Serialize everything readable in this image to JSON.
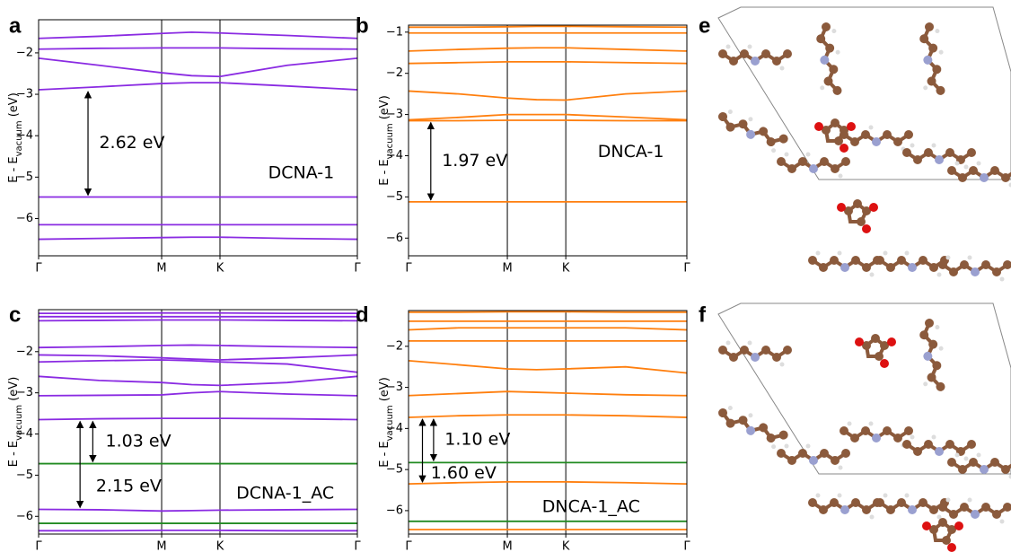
{
  "chart_data": [
    {
      "type": "line",
      "panel_label": "a",
      "label": "DCNA-1",
      "ylabel": [
        "E - E",
        "vacuum",
        " (eV)"
      ],
      "x": [
        0,
        0.19,
        0.386,
        0.48,
        0.569,
        0.78,
        1
      ],
      "xlim": [
        0,
        1
      ],
      "xticks": [
        {
          "value": 0,
          "label": "Γ"
        },
        {
          "value": 0.386,
          "label": "M"
        },
        {
          "value": 0.569,
          "label": "K"
        },
        {
          "value": 1,
          "label": "Γ"
        }
      ],
      "ylim": [
        -6.9,
        -1.2
      ],
      "yticks": [
        {
          "value": -6,
          "label": "−6"
        },
        {
          "value": -5,
          "label": "−5"
        },
        {
          "value": -4,
          "label": "−4"
        },
        {
          "value": -3,
          "label": "−3"
        },
        {
          "value": -2,
          "label": "−2"
        }
      ],
      "xgrid": true,
      "series": [
        {
          "color": "#8a2be2",
          "values": [
            -1.65,
            -1.6,
            -1.53,
            -1.5,
            -1.52,
            -1.58,
            -1.65
          ]
        },
        {
          "color": "#8a2be2",
          "values": [
            -1.91,
            -1.89,
            -1.88,
            -1.88,
            -1.88,
            -1.9,
            -1.91
          ]
        },
        {
          "color": "#8a2be2",
          "values": [
            -2.13,
            -2.3,
            -2.48,
            -2.55,
            -2.57,
            -2.3,
            -2.13
          ]
        },
        {
          "color": "#8a2be2",
          "values": [
            -2.89,
            -2.82,
            -2.74,
            -2.72,
            -2.72,
            -2.8,
            -2.89
          ]
        },
        {
          "color": "#8a2be2",
          "values": [
            -5.48,
            -5.48,
            -5.48,
            -5.48,
            -5.48,
            -5.48,
            -5.48
          ]
        },
        {
          "color": "#8a2be2",
          "values": [
            -6.15,
            -6.15,
            -6.15,
            -6.15,
            -6.15,
            -6.15,
            -6.15
          ]
        },
        {
          "color": "#8a2be2",
          "values": [
            -6.5,
            -6.48,
            -6.46,
            -6.45,
            -6.45,
            -6.48,
            -6.5
          ]
        }
      ],
      "annotations": [
        "2.62 eV"
      ]
    },
    {
      "type": "line",
      "panel_label": "b",
      "label": "DNCA-1",
      "ylabel": [
        "E - E",
        "vacuum",
        " (eV)"
      ],
      "x": [
        0,
        0.18,
        0.355,
        0.46,
        0.565,
        0.78,
        1
      ],
      "xlim": [
        0,
        1
      ],
      "xticks": [
        {
          "value": 0,
          "label": "Γ"
        },
        {
          "value": 0.355,
          "label": "M"
        },
        {
          "value": 0.565,
          "label": "K"
        },
        {
          "value": 1,
          "label": "Γ"
        }
      ],
      "ylim": [
        -6.43,
        -0.83
      ],
      "yticks": [
        {
          "value": -6,
          "label": "−6"
        },
        {
          "value": -5,
          "label": "−5"
        },
        {
          "value": -4,
          "label": "−4"
        },
        {
          "value": -3,
          "label": "−3"
        },
        {
          "value": -2,
          "label": "−2"
        },
        {
          "value": -1,
          "label": "−1"
        }
      ],
      "xgrid": true,
      "series": [
        {
          "color": "#ff7f0e",
          "values": [
            -0.88,
            -0.88,
            -0.87,
            -0.86,
            -0.86,
            -0.87,
            -0.88
          ]
        },
        {
          "color": "#ff7f0e",
          "values": [
            -1.02,
            -1.02,
            -1.02,
            -1.02,
            -1.02,
            -1.02,
            -1.02
          ]
        },
        {
          "color": "#ff7f0e",
          "values": [
            -1.46,
            -1.42,
            -1.39,
            -1.38,
            -1.38,
            -1.42,
            -1.46
          ]
        },
        {
          "color": "#ff7f0e",
          "values": [
            -1.76,
            -1.74,
            -1.72,
            -1.72,
            -1.72,
            -1.74,
            -1.76
          ]
        },
        {
          "color": "#ff7f0e",
          "values": [
            -2.43,
            -2.5,
            -2.6,
            -2.64,
            -2.65,
            -2.5,
            -2.43
          ]
        },
        {
          "color": "#ff7f0e",
          "values": [
            -3.13,
            -3.07,
            -3.0,
            -3.0,
            -3.0,
            -3.06,
            -3.13
          ]
        },
        {
          "color": "#ff7f0e",
          "values": [
            -3.15,
            -3.15,
            -3.14,
            -3.14,
            -3.14,
            -3.15,
            -3.15
          ]
        },
        {
          "color": "#ff7f0e",
          "values": [
            -5.12,
            -5.12,
            -5.12,
            -5.12,
            -5.12,
            -5.12,
            -5.12
          ]
        }
      ],
      "annotations": [
        "1.97 eV"
      ]
    },
    {
      "type": "line",
      "panel_label": "c",
      "label": "DCNA-1_AC",
      "ylabel": [
        "E - E",
        "vacuum",
        " (eV)"
      ],
      "x": [
        0,
        0.19,
        0.386,
        0.48,
        0.569,
        0.78,
        1
      ],
      "xlim": [
        0,
        1
      ],
      "xticks": [
        {
          "value": 0,
          "label": "Γ"
        },
        {
          "value": 0.386,
          "label": "M"
        },
        {
          "value": 0.569,
          "label": "K"
        },
        {
          "value": 1,
          "label": "Γ"
        }
      ],
      "ylim": [
        -6.43,
        -0.98
      ],
      "yticks": [
        {
          "value": -6,
          "label": "−6"
        },
        {
          "value": -5,
          "label": "−5"
        },
        {
          "value": -4,
          "label": "−4"
        },
        {
          "value": -3,
          "label": "−3"
        },
        {
          "value": -2,
          "label": "−2"
        }
      ],
      "xgrid": true,
      "series": [
        {
          "color": "#8a2be2",
          "values": [
            -1.07,
            -1.07,
            -1.06,
            -1.06,
            -1.06,
            -1.07,
            -1.07
          ]
        },
        {
          "color": "#8a2be2",
          "values": [
            -1.15,
            -1.15,
            -1.15,
            -1.15,
            -1.15,
            -1.15,
            -1.15
          ]
        },
        {
          "color": "#8a2be2",
          "values": [
            -1.25,
            -1.24,
            -1.23,
            -1.23,
            -1.23,
            -1.24,
            -1.25
          ]
        },
        {
          "color": "#8a2be2",
          "values": [
            -1.9,
            -1.88,
            -1.85,
            -1.84,
            -1.85,
            -1.88,
            -1.9
          ]
        },
        {
          "color": "#8a2be2",
          "values": [
            -2.08,
            -2.1,
            -2.15,
            -2.18,
            -2.2,
            -2.15,
            -2.08
          ]
        },
        {
          "color": "#8a2be2",
          "values": [
            -2.25,
            -2.22,
            -2.2,
            -2.22,
            -2.25,
            -2.3,
            -2.5
          ]
        },
        {
          "color": "#8a2be2",
          "values": [
            -2.6,
            -2.7,
            -2.75,
            -2.8,
            -2.82,
            -2.75,
            -2.6
          ]
        },
        {
          "color": "#8a2be2",
          "values": [
            -3.07,
            -3.06,
            -3.05,
            -3.0,
            -2.97,
            -3.03,
            -3.07
          ]
        },
        {
          "color": "#8a2be2",
          "values": [
            -3.65,
            -3.63,
            -3.62,
            -3.62,
            -3.62,
            -3.63,
            -3.65
          ]
        },
        {
          "color": "#228b22",
          "values": [
            -4.72,
            -4.72,
            -4.72,
            -4.72,
            -4.72,
            -4.72,
            -4.72
          ]
        },
        {
          "color": "#8a2be2",
          "values": [
            -5.83,
            -5.84,
            -5.87,
            -5.86,
            -5.85,
            -5.84,
            -5.83
          ]
        },
        {
          "color": "#228b22",
          "values": [
            -6.17,
            -6.17,
            -6.17,
            -6.17,
            -6.17,
            -6.17,
            -6.17
          ]
        },
        {
          "color": "#8a2be2",
          "values": [
            -6.35,
            -6.35,
            -6.34,
            -6.34,
            -6.34,
            -6.35,
            -6.35
          ]
        }
      ],
      "annotations": [
        "1.03 eV",
        "2.15 eV"
      ]
    },
    {
      "type": "line",
      "panel_label": "d",
      "label": "DNCA-1_AC",
      "ylabel": [
        "E - E",
        "vacuum",
        " (eV)"
      ],
      "x": [
        0,
        0.18,
        0.355,
        0.46,
        0.565,
        0.78,
        1
      ],
      "xlim": [
        0,
        1
      ],
      "xticks": [
        {
          "value": 0,
          "label": "Γ"
        },
        {
          "value": 0.355,
          "label": "M"
        },
        {
          "value": 0.565,
          "label": "K"
        },
        {
          "value": 1,
          "label": "Γ"
        }
      ],
      "ylim": [
        -6.57,
        -1.13
      ],
      "yticks": [
        {
          "value": -6,
          "label": "−6"
        },
        {
          "value": -5,
          "label": "−5"
        },
        {
          "value": -4,
          "label": "−4"
        },
        {
          "value": -3,
          "label": "−3"
        },
        {
          "value": -2,
          "label": "−2"
        }
      ],
      "xgrid": true,
      "series": [
        {
          "color": "#ff7f0e",
          "values": [
            -1.17,
            -1.17,
            -1.16,
            -1.16,
            -1.16,
            -1.17,
            -1.17
          ]
        },
        {
          "color": "#ff7f0e",
          "values": [
            -1.39,
            -1.39,
            -1.39,
            -1.39,
            -1.39,
            -1.39,
            -1.39
          ]
        },
        {
          "color": "#ff7f0e",
          "values": [
            -1.6,
            -1.55,
            -1.55,
            -1.55,
            -1.55,
            -1.55,
            -1.6
          ]
        },
        {
          "color": "#ff7f0e",
          "values": [
            -1.87,
            -1.87,
            -1.87,
            -1.87,
            -1.87,
            -1.87,
            -1.87
          ]
        },
        {
          "color": "#ff7f0e",
          "values": [
            -2.35,
            -2.45,
            -2.55,
            -2.57,
            -2.55,
            -2.5,
            -2.65
          ]
        },
        {
          "color": "#ff7f0e",
          "values": [
            -3.2,
            -3.15,
            -3.1,
            -3.12,
            -3.14,
            -3.18,
            -3.2
          ]
        },
        {
          "color": "#ff7f0e",
          "values": [
            -3.73,
            -3.69,
            -3.67,
            -3.67,
            -3.67,
            -3.69,
            -3.73
          ]
        },
        {
          "color": "#228b22",
          "values": [
            -4.83,
            -4.83,
            -4.83,
            -4.83,
            -4.83,
            -4.83,
            -4.83
          ]
        },
        {
          "color": "#ff7f0e",
          "values": [
            -5.35,
            -5.32,
            -5.3,
            -5.3,
            -5.3,
            -5.32,
            -5.35
          ]
        },
        {
          "color": "#228b22",
          "values": [
            -6.26,
            -6.26,
            -6.26,
            -6.26,
            -6.26,
            -6.26,
            -6.26
          ]
        },
        {
          "color": "#ff7f0e",
          "values": [
            -6.46,
            -6.46,
            -6.46,
            -6.46,
            -6.46,
            -6.46,
            -6.46
          ]
        }
      ],
      "annotations": [
        "1.10 eV",
        "1.60 eV"
      ]
    }
  ],
  "image_panels": [
    {
      "label": "e"
    },
    {
      "label": "f"
    }
  ]
}
